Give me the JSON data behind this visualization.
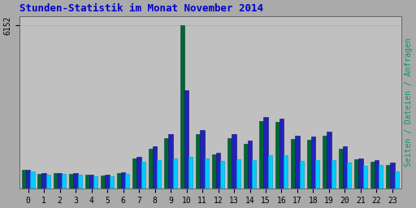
{
  "title": "Stunden-Statistik im Monat November 2014",
  "title_color": "#0000CC",
  "ylabel_right": "Seiten / Dateien / Anfragen",
  "ytick_label": "6152",
  "background_color": "#aaaaaa",
  "plot_bg": "#c0c0c0",
  "hours": [
    0,
    1,
    2,
    3,
    4,
    5,
    6,
    7,
    8,
    9,
    10,
    11,
    12,
    13,
    14,
    15,
    16,
    17,
    18,
    19,
    20,
    21,
    22,
    23
  ],
  "seiten": [
    700,
    560,
    580,
    560,
    510,
    480,
    590,
    1150,
    1500,
    1900,
    6152,
    2050,
    1280,
    1900,
    1700,
    2550,
    2500,
    1880,
    1850,
    2000,
    1500,
    1100,
    1000,
    900
  ],
  "dateien": [
    720,
    590,
    600,
    575,
    530,
    510,
    620,
    1200,
    1580,
    2050,
    3700,
    2200,
    1350,
    2050,
    1800,
    2700,
    2650,
    2000,
    1950,
    2150,
    1580,
    1150,
    1080,
    980
  ],
  "anfragen": [
    640,
    530,
    540,
    510,
    470,
    450,
    545,
    1000,
    1080,
    1150,
    1200,
    1150,
    1050,
    1100,
    1080,
    1250,
    1250,
    1050,
    1060,
    1060,
    980,
    870,
    900,
    660
  ],
  "color_seiten": "#006633",
  "color_dateien": "#2222BB",
  "color_anfragen": "#00CCFF",
  "edge_seiten": "#004422",
  "edge_dateien": "#111177",
  "edge_anfragen": "#0099CC",
  "ylim_max": 6500,
  "bar_width": 0.27,
  "font_family": "monospace",
  "title_fontsize": 9,
  "tick_fontsize": 7,
  "grid_color": "#aaaaaa",
  "right_label_color": "#009966"
}
